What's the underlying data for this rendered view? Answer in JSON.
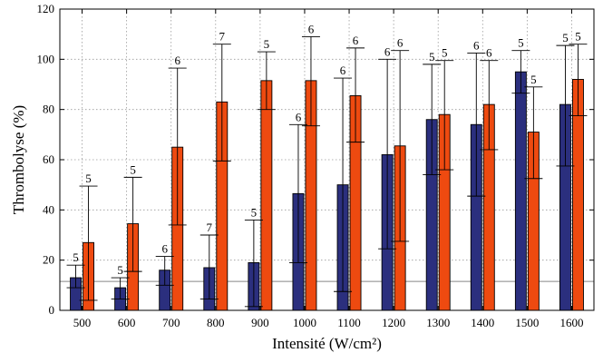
{
  "chart_data": {
    "type": "bar",
    "xlabel": "Intensité (W/cm²)",
    "ylabel": "Thrombolyse (%)",
    "ylim": [
      0,
      120
    ],
    "yticks": [
      0,
      20,
      40,
      60,
      80,
      100,
      120
    ],
    "grid": true,
    "categories": [
      "500",
      "600",
      "700",
      "800",
      "900",
      "1000",
      "1100",
      "1200",
      "1300",
      "1400",
      "1500",
      "1600"
    ],
    "reference_line": 11.5,
    "series": [
      {
        "color": "#2b2f7e",
        "values": [
          13,
          9,
          16,
          17,
          19,
          46.5,
          50,
          62,
          76,
          74,
          95,
          82
        ],
        "err_low": [
          9,
          4.5,
          10,
          4.5,
          1.5,
          19,
          7.5,
          24.5,
          54,
          45.5,
          86.5,
          57.5
        ],
        "err_high": [
          18,
          13,
          21.5,
          30,
          36,
          74,
          92.5,
          100,
          98,
          102.5,
          103.5,
          105.5
        ],
        "n": [
          "5",
          "5",
          "6",
          "7",
          "5",
          "6",
          "6",
          "6",
          "5",
          "6",
          "5",
          "5"
        ]
      },
      {
        "color": "#ee4a10",
        "values": [
          27,
          34.5,
          65,
          83,
          91.5,
          91.5,
          85.5,
          65.5,
          78,
          82,
          71,
          92
        ],
        "err_low": [
          4,
          15.5,
          34,
          59.5,
          80,
          73.5,
          67,
          27.5,
          56,
          64,
          52.5,
          77.5
        ],
        "err_high": [
          49.5,
          53,
          96.5,
          106,
          103,
          109,
          104.5,
          103.5,
          99.5,
          99.5,
          89,
          106
        ],
        "n": [
          "5",
          "5",
          "6",
          "7",
          "5",
          "6",
          "6",
          "6",
          "5",
          "6",
          "5",
          "5"
        ]
      }
    ]
  }
}
